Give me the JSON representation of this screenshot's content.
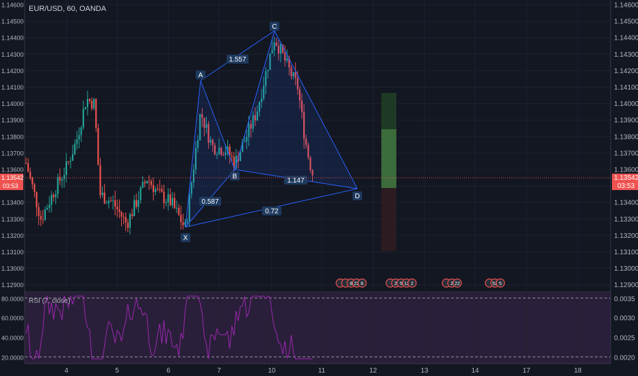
{
  "header": {
    "symbol": "EUR/USD, 60, OANDA"
  },
  "price_axis": {
    "ticks": [
      "1.14600",
      "1.14500",
      "1.14400",
      "1.14300",
      "1.14200",
      "1.14100",
      "1.14000",
      "1.13900",
      "1.13800",
      "1.13700",
      "1.13600",
      "1.13500",
      "1.13400",
      "1.13300",
      "1.13200",
      "1.13100",
      "1.13000",
      "1.12900"
    ],
    "current_price": "1.13542",
    "countdown": "03:53",
    "left_price_badge": "1.13542",
    "left_countdown_badge": "03:53"
  },
  "rsi": {
    "label": "RSI (7, close)",
    "left_ticks": [
      "80.0000",
      "60.0000",
      "40.0000",
      "20.0000"
    ],
    "right_ticks": [
      "0.0035",
      "0.0030",
      "0.0025",
      "0.0020"
    ]
  },
  "time_axis": {
    "ticks": [
      "4",
      "5",
      "6",
      "7",
      "10",
      "11",
      "12",
      "13",
      "14",
      "17",
      "18"
    ]
  },
  "pattern": {
    "points": {
      "X": "X",
      "A": "A",
      "B": "B",
      "C": "C",
      "D": "D"
    },
    "ratios": {
      "xab": "0.587",
      "abc": "1.557",
      "bcd": "1.147",
      "xad": "0.72"
    }
  },
  "events": [
    {
      "labels": [
        "",
        ""
      ]
    },
    {
      "labels": [
        "8",
        "22",
        "8"
      ]
    },
    {
      "labels": [
        "2",
        "5",
        "12",
        "2"
      ]
    },
    {
      "labels": [
        "2",
        "22"
      ]
    },
    {
      "labels": [
        "52",
        "5"
      ]
    }
  ],
  "colors": {
    "up": "#26a69a",
    "down": "#ef5350",
    "pattern": "#2962ff",
    "rsi": "#9c27b0",
    "price_line": "#ef5350"
  },
  "chart_data": {
    "type": "candlestick",
    "title": "EUR/USD, 60, OANDA",
    "ylim": [
      1.128,
      1.1465
    ],
    "harmonic_points": [
      {
        "name": "X",
        "price": 1.1324
      },
      {
        "name": "A",
        "price": 1.1413
      },
      {
        "name": "B",
        "price": 1.1359
      },
      {
        "name": "C",
        "price": 1.1443
      },
      {
        "name": "D",
        "price": 1.1348
      }
    ],
    "ratios": {
      "XAB": 0.587,
      "ABC": 1.557,
      "BCD": 1.147,
      "XAD": 0.72
    },
    "target_zone": {
      "profit_top": 1.1406,
      "entry": 1.1348,
      "stop_bottom": 1.131
    },
    "last_price": 1.13542
  }
}
